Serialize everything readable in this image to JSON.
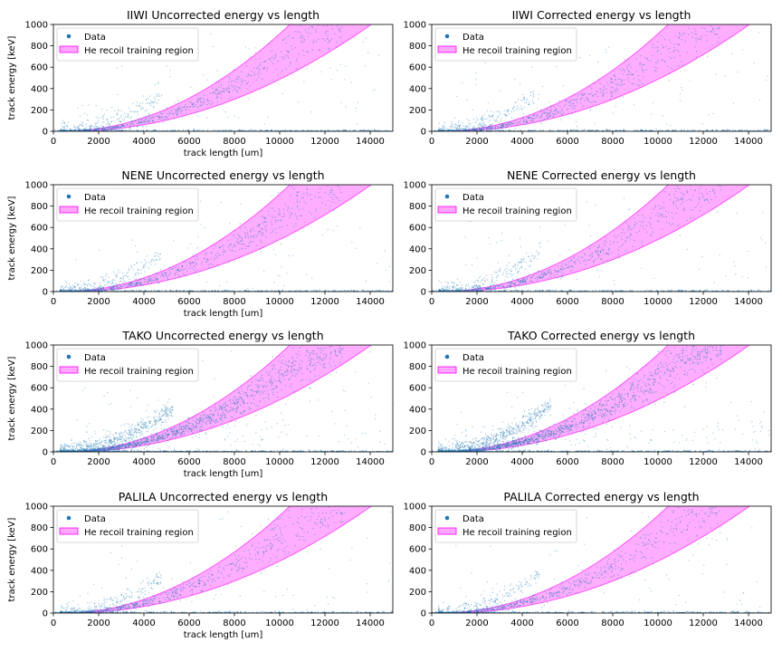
{
  "chart_data": [
    {
      "type": "scatter",
      "title": "IIWI Uncorrected energy vs length",
      "xlabel": "",
      "ylabel": "track energy [keV]",
      "xlim": [
        0,
        15000
      ],
      "ylim": [
        0,
        1000
      ],
      "xticks": [
        0,
        2000,
        4000,
        6000,
        8000,
        10000,
        12000,
        14000
      ],
      "yticks": [
        0,
        200,
        400,
        600,
        800,
        1000
      ],
      "series": [
        {
          "name": "Data",
          "color": "#1f77b4",
          "relation": "energy rises roughly as length^2 (~400 keV at 7000 um), plus flat band near 0 keV"
        },
        {
          "name": "He recoil training region",
          "color": "#ff00ff",
          "band_low": [
            [
              500,
              0
            ],
            [
              2000,
              20
            ],
            [
              4000,
              110
            ],
            [
              6000,
              240
            ],
            [
              8000,
              400
            ],
            [
              10000,
              600
            ],
            [
              12000,
              830
            ],
            [
              14000,
              1000
            ]
          ],
          "band_high": [
            [
              500,
              0
            ],
            [
              2000,
              40
            ],
            [
              4000,
              200
            ],
            [
              6000,
              420
            ],
            [
              8000,
              680
            ],
            [
              9500,
              900
            ],
            [
              10400,
              1000
            ]
          ]
        }
      ],
      "legend": "top-left"
    },
    {
      "type": "scatter",
      "title": "IIWI Corrected energy vs length",
      "xlabel": "",
      "ylabel": "",
      "xlim": [
        0,
        15000
      ],
      "ylim": [
        0,
        1000
      ],
      "xticks": [
        0,
        2000,
        4000,
        6000,
        8000,
        10000,
        12000,
        14000
      ],
      "yticks": [
        0,
        200,
        400,
        600,
        800,
        1000
      ],
      "series": [
        {
          "name": "Data",
          "color": "#1f77b4"
        },
        {
          "name": "He recoil training region",
          "color": "#ff00ff"
        }
      ],
      "legend": "top-left"
    },
    {
      "type": "scatter",
      "title": "NENE Uncorrected energy vs length",
      "xlabel": "",
      "ylabel": "track energy [keV]",
      "xlim": [
        0,
        15000
      ],
      "ylim": [
        0,
        1000
      ],
      "xticks": [
        0,
        2000,
        4000,
        6000,
        8000,
        10000,
        12000,
        14000
      ],
      "yticks": [
        0,
        200,
        400,
        600,
        800,
        1000
      ],
      "series": [
        {
          "name": "Data",
          "color": "#1f77b4"
        },
        {
          "name": "He recoil training region",
          "color": "#ff00ff"
        }
      ],
      "legend": "top-left"
    },
    {
      "type": "scatter",
      "title": "NENE Corrected energy vs length",
      "xlabel": "",
      "ylabel": "",
      "xlim": [
        0,
        15000
      ],
      "ylim": [
        0,
        1000
      ],
      "xticks": [
        0,
        2000,
        4000,
        6000,
        8000,
        10000,
        12000,
        14000
      ],
      "yticks": [
        0,
        200,
        400,
        600,
        800,
        1000
      ],
      "series": [
        {
          "name": "Data",
          "color": "#1f77b4"
        },
        {
          "name": "He recoil training region",
          "color": "#ff00ff"
        }
      ],
      "legend": "top-left"
    },
    {
      "type": "scatter",
      "title": "TAKO Uncorrected energy vs length",
      "xlabel": "",
      "ylabel": "track energy [keV]",
      "xlim": [
        0,
        15000
      ],
      "ylim": [
        0,
        1000
      ],
      "xticks": [
        0,
        2000,
        4000,
        6000,
        8000,
        10000,
        12000,
        14000
      ],
      "yticks": [
        0,
        200,
        400,
        600,
        800,
        1000
      ],
      "series": [
        {
          "name": "Data",
          "color": "#1f77b4"
        },
        {
          "name": "He recoil training region",
          "color": "#ff00ff"
        }
      ],
      "legend": "top-left"
    },
    {
      "type": "scatter",
      "title": "TAKO Corrected energy vs length",
      "xlabel": "",
      "ylabel": "",
      "xlim": [
        0,
        15000
      ],
      "ylim": [
        0,
        1000
      ],
      "xticks": [
        0,
        2000,
        4000,
        6000,
        8000,
        10000,
        12000,
        14000
      ],
      "yticks": [
        0,
        200,
        400,
        600,
        800,
        1000
      ],
      "series": [
        {
          "name": "Data",
          "color": "#1f77b4"
        },
        {
          "name": "He recoil training region",
          "color": "#ff00ff"
        }
      ],
      "legend": "top-left"
    },
    {
      "type": "scatter",
      "title": "PALILA Uncorrected energy vs length",
      "xlabel": "track length [um]",
      "ylabel": "track energy [keV]",
      "xlim": [
        0,
        15000
      ],
      "ylim": [
        0,
        1000
      ],
      "xticks": [
        0,
        2000,
        4000,
        6000,
        8000,
        10000,
        12000,
        14000
      ],
      "yticks": [
        0,
        200,
        400,
        600,
        800,
        1000
      ],
      "series": [
        {
          "name": "Data",
          "color": "#1f77b4"
        },
        {
          "name": "He recoil training region",
          "color": "#ff00ff"
        }
      ],
      "legend": "top-left"
    },
    {
      "type": "scatter",
      "title": "PALILA Corrected energy vs length",
      "xlabel": "track length [um]",
      "ylabel": "",
      "xlim": [
        0,
        15000
      ],
      "ylim": [
        0,
        1000
      ],
      "xticks": [
        0,
        2000,
        4000,
        6000,
        8000,
        10000,
        12000,
        14000
      ],
      "yticks": [
        0,
        200,
        400,
        600,
        800,
        1000
      ],
      "series": [
        {
          "name": "Data",
          "color": "#1f77b4"
        },
        {
          "name": "He recoil training region",
          "color": "#ff00ff"
        }
      ],
      "legend": "top-left"
    }
  ],
  "labels": {
    "xlabel_row": "track length [um]",
    "ylabel": "track energy [keV]"
  },
  "colors": {
    "data": "#1f77b4",
    "band_fill": "#ff00ff",
    "band_edge": "#ff00ff"
  }
}
